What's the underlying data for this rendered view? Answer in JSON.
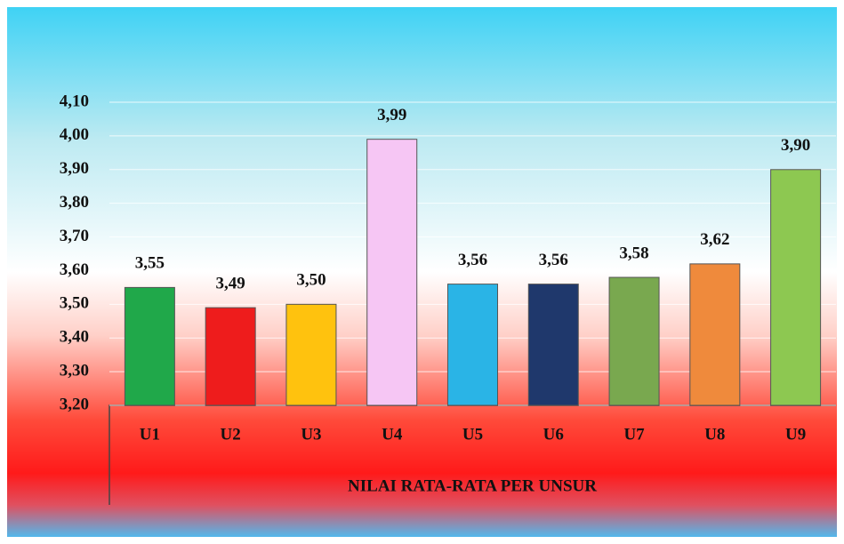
{
  "chart_data": {
    "type": "bar",
    "x_label": "NILAI RATA-RATA PER UNSUR",
    "categories": [
      "U1",
      "U2",
      "U3",
      "U4",
      "U5",
      "U6",
      "U7",
      "U8",
      "U9"
    ],
    "values": [
      3.55,
      3.49,
      3.5,
      3.99,
      3.56,
      3.56,
      3.58,
      3.62,
      3.9
    ],
    "value_labels": [
      "3,55",
      "3,49",
      "3,50",
      "3,99",
      "3,56",
      "3,56",
      "3,58",
      "3,62",
      "3,90"
    ],
    "colors": [
      "#20a84a",
      "#ee1c1c",
      "#ffc20e",
      "#f6c6f4",
      "#2ab4e6",
      "#1f386c",
      "#79a84f",
      "#ef8a3c",
      "#8dc851"
    ],
    "ylim": [
      3.2,
      4.1
    ],
    "yticks": [
      {
        "value": 3.2,
        "label": "3,20"
      },
      {
        "value": 3.3,
        "label": "3,30"
      },
      {
        "value": 3.4,
        "label": "3,40"
      },
      {
        "value": 3.5,
        "label": "3,50"
      },
      {
        "value": 3.6,
        "label": "3,60"
      },
      {
        "value": 3.7,
        "label": "3,70"
      },
      {
        "value": 3.8,
        "label": "3,80"
      },
      {
        "value": 3.9,
        "label": "3,90"
      },
      {
        "value": 4.0,
        "label": "4,00"
      },
      {
        "value": 4.1,
        "label": "4,10"
      }
    ],
    "grid": true
  }
}
